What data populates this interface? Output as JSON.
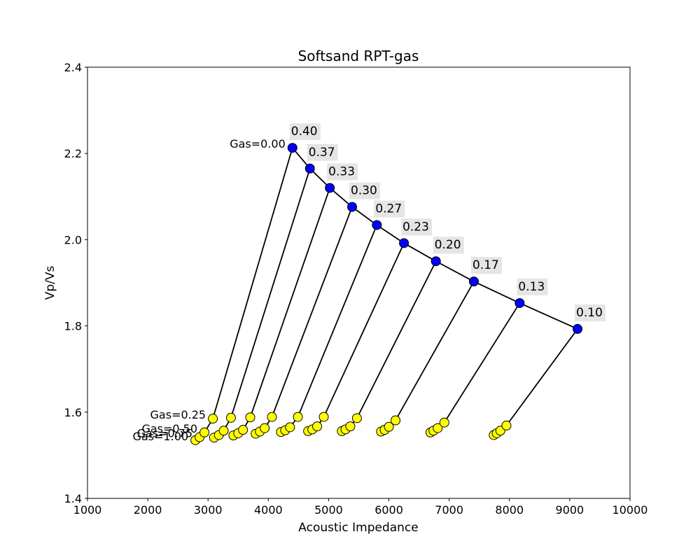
{
  "chart_data": {
    "type": "scatter",
    "title": "Softsand RPT-gas",
    "xlabel": "Acoustic Impedance",
    "ylabel": "Vp/Vs",
    "xlim": [
      1000,
      10000
    ],
    "ylim": [
      1.4,
      2.4
    ],
    "xticks": [
      1000,
      2000,
      3000,
      4000,
      5000,
      6000,
      7000,
      8000,
      9000,
      10000
    ],
    "yticks": [
      1.4,
      1.6,
      1.8,
      2.0,
      2.2,
      2.4
    ],
    "grid": false,
    "colors": {
      "brine": "#0000ff",
      "gas": "#ffff00",
      "line": "#000000",
      "label_bg": "#e5e5e5"
    },
    "porosity_labels": [
      "0.40",
      "0.37",
      "0.33",
      "0.30",
      "0.27",
      "0.23",
      "0.20",
      "0.17",
      "0.13",
      "0.10"
    ],
    "gas_labels": [
      "Gas=0.00",
      "Gas=0.25",
      "Gas=0.50",
      "Gas=0.75",
      "Gas=1.00"
    ],
    "brine_points": [
      {
        "x": 4400,
        "y": 2.213
      },
      {
        "x": 4690,
        "y": 2.165
      },
      {
        "x": 5020,
        "y": 2.12
      },
      {
        "x": 5390,
        "y": 2.076
      },
      {
        "x": 5800,
        "y": 2.034
      },
      {
        "x": 6250,
        "y": 1.992
      },
      {
        "x": 6780,
        "y": 1.95
      },
      {
        "x": 7410,
        "y": 1.903
      },
      {
        "x": 8170,
        "y": 1.853
      },
      {
        "x": 9130,
        "y": 1.793
      }
    ],
    "gas_points": [
      [
        {
          "x": 3080,
          "y": 1.585
        },
        {
          "x": 2940,
          "y": 1.553
        },
        {
          "x": 2860,
          "y": 1.542
        },
        {
          "x": 2790,
          "y": 1.535
        }
      ],
      [
        {
          "x": 3380,
          "y": 1.587
        },
        {
          "x": 3260,
          "y": 1.557
        },
        {
          "x": 3180,
          "y": 1.547
        },
        {
          "x": 3100,
          "y": 1.541
        }
      ],
      [
        {
          "x": 3700,
          "y": 1.588
        },
        {
          "x": 3580,
          "y": 1.559
        },
        {
          "x": 3500,
          "y": 1.551
        },
        {
          "x": 3420,
          "y": 1.546
        }
      ],
      [
        {
          "x": 4060,
          "y": 1.589
        },
        {
          "x": 3940,
          "y": 1.563
        },
        {
          "x": 3860,
          "y": 1.555
        },
        {
          "x": 3790,
          "y": 1.55
        }
      ],
      [
        {
          "x": 4490,
          "y": 1.589
        },
        {
          "x": 4360,
          "y": 1.565
        },
        {
          "x": 4280,
          "y": 1.558
        },
        {
          "x": 4210,
          "y": 1.554
        }
      ],
      [
        {
          "x": 4920,
          "y": 1.589
        },
        {
          "x": 4810,
          "y": 1.567
        },
        {
          "x": 4730,
          "y": 1.56
        },
        {
          "x": 4660,
          "y": 1.556
        }
      ],
      [
        {
          "x": 5470,
          "y": 1.586
        },
        {
          "x": 5360,
          "y": 1.567
        },
        {
          "x": 5280,
          "y": 1.56
        },
        {
          "x": 5220,
          "y": 1.556
        }
      ],
      [
        {
          "x": 6110,
          "y": 1.581
        },
        {
          "x": 6000,
          "y": 1.566
        },
        {
          "x": 5930,
          "y": 1.559
        },
        {
          "x": 5870,
          "y": 1.555
        }
      ],
      [
        {
          "x": 6920,
          "y": 1.576
        },
        {
          "x": 6810,
          "y": 1.563
        },
        {
          "x": 6740,
          "y": 1.557
        },
        {
          "x": 6690,
          "y": 1.553
        }
      ],
      [
        {
          "x": 7950,
          "y": 1.569
        },
        {
          "x": 7850,
          "y": 1.557
        },
        {
          "x": 7790,
          "y": 1.551
        },
        {
          "x": 7740,
          "y": 1.547
        }
      ]
    ]
  }
}
